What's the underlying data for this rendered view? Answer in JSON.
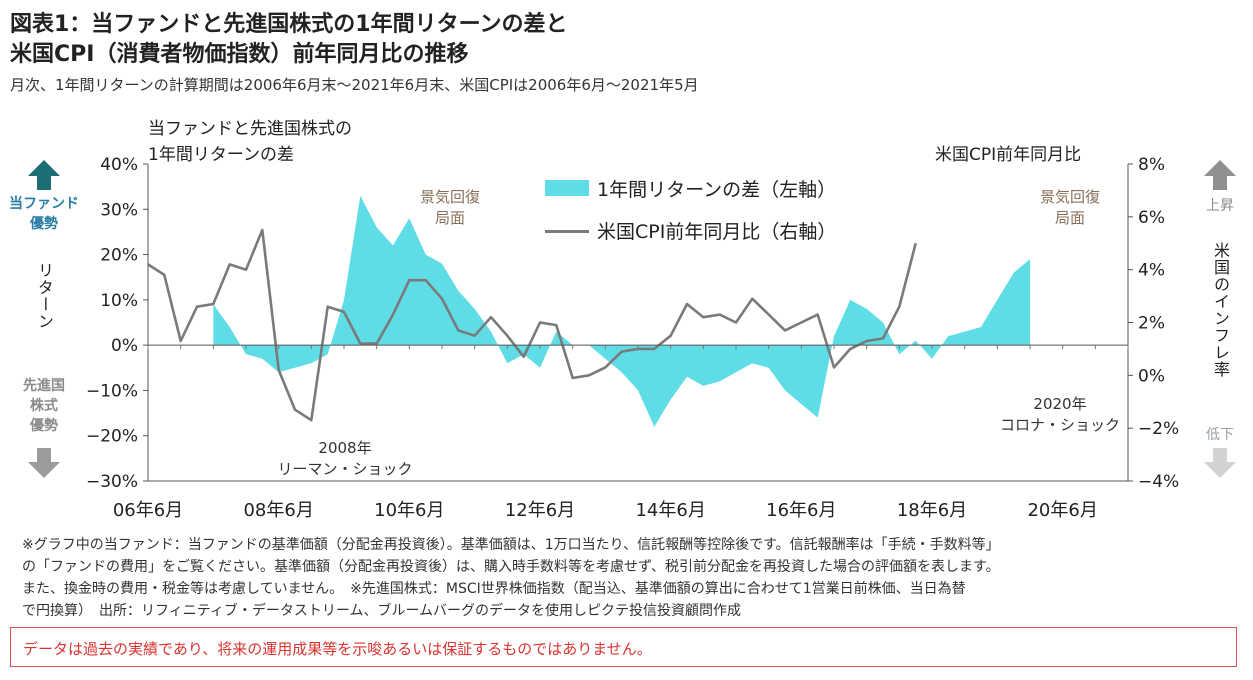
{
  "title_line1": "図表1：当ファンドと先進国株式の1年間リターンの差と",
  "title_line2": "米国CPI（消費者物価指数）前年同月比の推移",
  "subtitle": "月次、1年間リターンの計算期間は2006年6月末～2021年6月末、米国CPIは2006年6月～2021年5月",
  "left_axis_title_line1": "当ファンドと先進国株式の",
  "left_axis_title_line2": "1年間リターンの差",
  "right_axis_title": "米国CPI前年同月比",
  "left_side": {
    "top_label_line1": "当ファンド",
    "top_label_line2": "優勢",
    "middle_label": "リターン",
    "bottom_label_line1": "先進国",
    "bottom_label_line2": "株式",
    "bottom_label_line3": "優勢"
  },
  "right_side": {
    "top_label": "上昇",
    "middle_label": "米国のインフレ率",
    "bottom_label": "低下"
  },
  "annotations": {
    "recovery1_line1": "景気回復",
    "recovery1_line2": "局面",
    "recovery2_line1": "景気回復",
    "recovery2_line2": "局面",
    "lehman_line1": "2008年",
    "lehman_line2": "リーマン・ショック",
    "corona_line1": "2020年",
    "corona_line2": "コロナ・ショック"
  },
  "notes": [
    "※グラフ中の当ファンド：当ファンドの基準価額（分配金再投資後）。基準価額は、1万口当たり、信託報酬等控除後です。信託報酬率は「手続・手数料等」",
    "の「ファンドの費用」をご覧ください。基準価額（分配金再投資後）は、購入時手数料等を考慮せず、税引前分配金を再投資した場合の評価額を表します。",
    "また、換金時の費用・税金等は考慮していません。　※先進国株式：MSCI世界株価指数（配当込、基準価額の算出に合わせて1営業日前株価、当日為替",
    "で円換算）　出所：リフィニティブ・データストリーム、ブルームバーグのデータを使用しピクテ投信投資顧問作成"
  ],
  "disclaimer": "データは過去の実績であり、将来の運用成果等を示唆あるいは保証するものではありません。",
  "colors": {
    "area": "#5fdde6",
    "line": "#7a7a7a",
    "arrow_up_teal": "#1b6e74",
    "arrow_gray": "#9b9b9b",
    "disclaimer_red": "#d9342f"
  },
  "chart_data": {
    "type": "area+line",
    "x_tick_labels": [
      "06年6月",
      "08年6月",
      "10年6月",
      "12年6月",
      "14年6月",
      "16年6月",
      "18年6月",
      "20年6月"
    ],
    "x_range": [
      "2006-06",
      "2021-06"
    ],
    "left_axis": {
      "range": [
        -30,
        40
      ],
      "ticks": [
        "−30%",
        "−20%",
        "−10%",
        "0%",
        "10%",
        "20%",
        "30%",
        "40%"
      ],
      "ticks_values": [
        -30,
        -20,
        -10,
        0,
        10,
        20,
        30,
        40
      ]
    },
    "right_axis": {
      "range": [
        -4,
        8
      ],
      "ticks": [
        "−4%",
        "−2%",
        "0%",
        "2%",
        "4%",
        "6%",
        "8%"
      ],
      "ticks_values": [
        -4,
        -2,
        0,
        2,
        4,
        6,
        8
      ]
    },
    "series": [
      {
        "name": "1年間リターンの差（左軸）",
        "type": "area",
        "axis": "left",
        "start": "2007-06",
        "step_months": 3,
        "values": [
          9,
          4,
          -2,
          -3,
          -6,
          -5,
          -4,
          -2,
          10,
          33,
          26,
          22,
          28,
          20,
          18,
          12,
          8,
          3,
          -4,
          -2,
          -5,
          3,
          0,
          0,
          -3,
          -6,
          -10,
          -18,
          -12,
          -7,
          -9,
          -8,
          -6,
          -4,
          -5,
          -10,
          -13,
          -16,
          2,
          10,
          8,
          5,
          -2,
          1,
          -3,
          2,
          3,
          4,
          10,
          16,
          19
        ]
      },
      {
        "name": "米国CPI前年同月比（右軸）",
        "type": "line",
        "axis": "right",
        "start": "2006-06",
        "step_months": 3,
        "values": [
          4.2,
          3.8,
          1.3,
          2.6,
          2.7,
          4.2,
          4.0,
          5.5,
          0.2,
          -1.3,
          -1.7,
          2.6,
          2.4,
          1.2,
          1.2,
          2.3,
          3.6,
          3.6,
          2.9,
          1.7,
          1.5,
          2.2,
          1.5,
          0.7,
          2.0,
          1.9,
          -0.1,
          0.0,
          0.3,
          0.9,
          1.0,
          1.0,
          1.5,
          2.7,
          2.2,
          2.3,
          2.0,
          2.9,
          2.3,
          1.7,
          2.0,
          2.3,
          0.3,
          1.0,
          1.3,
          1.4,
          2.6,
          5.0
        ]
      }
    ],
    "legend": [
      "1年間リターンの差（左軸）",
      "米国CPI前年同月比（右軸）"
    ],
    "legend_position": "top-center",
    "grid": false
  }
}
